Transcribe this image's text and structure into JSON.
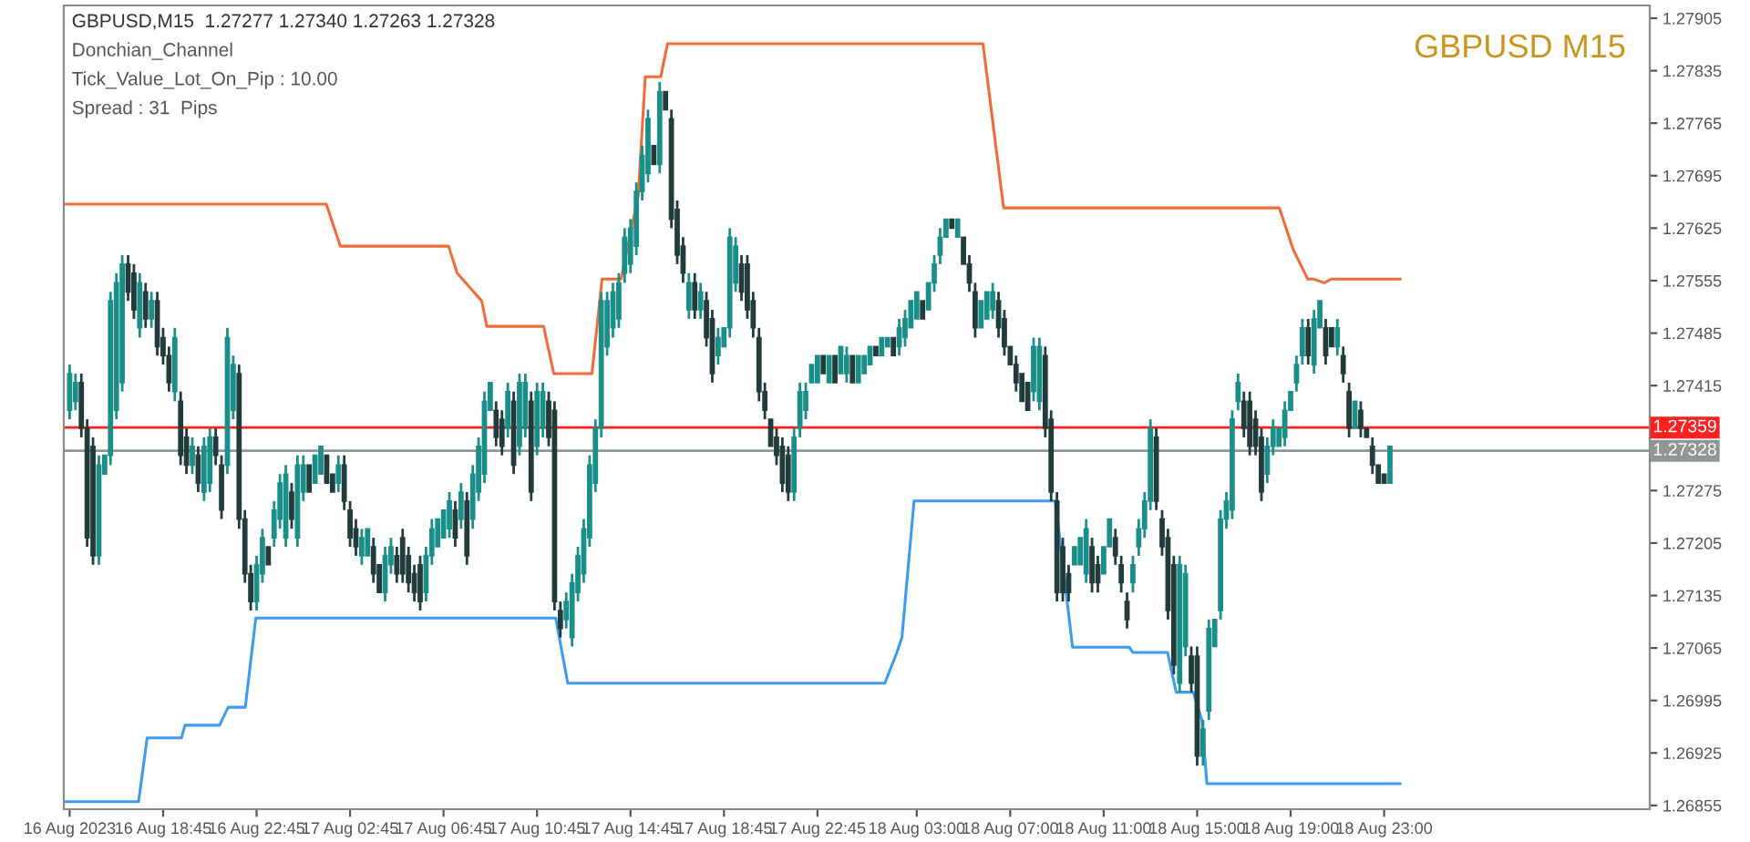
{
  "chart_data": {
    "type": "candlestick",
    "title": "GBPUSD M15",
    "annotations": [
      "GBPUSD,M15  1.27277 1.27340 1.27263 1.27328",
      "Donchian_Channel",
      "Tick_Value_Lot_On_Pip : 10.00",
      "Spread : 31  Pips"
    ],
    "colors": [
      "#1a8f8a",
      "#1a8f8a",
      "#223b3b",
      "#223b3b",
      "#223b3b",
      "#1a8f8a",
      "#1a8f8a",
      "#1a8f8a",
      "#1a8f8a",
      "#1a8f8a",
      "#223b3b",
      "#223b3b",
      "#1a8f8a",
      "#223b3b",
      "#1a8f8a",
      "#223b3b",
      "#223b3b",
      "#223b3b",
      "#1a8f8a",
      "#223b3b",
      "#223b3b",
      "#1a8f8a",
      "#223b3b",
      "#1a8f8a",
      "#1a8f8a",
      "#223b3b",
      "#223b3b",
      "#1a8f8a",
      "#1a8f8a",
      "#223b3b",
      "#223b3b",
      "#223b3b",
      "#1a8f8a",
      "#1a8f8a",
      "#223b3b",
      "#1a8f8a",
      "#1a8f8a",
      "#1a8f8a",
      "#223b3b",
      "#1a8f8a",
      "#1a8f8a",
      "#223b3b",
      "#1a8f8a",
      "#1a8f8a",
      "#223b3b",
      "#223b3b",
      "#1a8f8a",
      "#223b3b",
      "#223b3b",
      "#223b3b",
      "#1a8f8a",
      "#1a8f8a",
      "#223b3b",
      "#223b3b",
      "#1a8f8a",
      "#1a8f8a",
      "#223b3b",
      "#223b3b",
      "#223b3b",
      "#223b3b",
      "#223b3b",
      "#1a8f8a",
      "#1a8f8a",
      "#1a8f8a",
      "#1a8f8a",
      "#1a8f8a",
      "#223b3b",
      "#1a8f8a",
      "#223b3b",
      "#1a8f8a",
      "#1a8f8a",
      "#1a8f8a",
      "#1a8f8a",
      "#223b3b",
      "#223b3b",
      "#1a8f8a",
      "#223b3b",
      "#1a8f8a",
      "#1a8f8a",
      "#223b3b",
      "#1a8f8a",
      "#1a8f8a",
      "#223b3b",
      "#223b3b",
      "#223b3b",
      "#1a8f8a",
      "#1a8f8a",
      "#1a8f8a",
      "#1a8f8a",
      "#1a8f8a",
      "#1a8f8a",
      "#1a8f8a",
      "#1a8f8a",
      "#1a8f8a",
      "#1a8f8a",
      "#1a8f8a",
      "#1a8f8a",
      "#1a8f8a",
      "#1a8f8a",
      "#1a8f8a",
      "#223b3b",
      "#1a8f8a",
      "#223b3b",
      "#223b3b",
      "#223b3b",
      "#223b3b",
      "#1a8f8a",
      "#223b3b",
      "#1a8f8a",
      "#223b3b",
      "#223b3b",
      "#1a8f8a",
      "#1a8f8a",
      "#1a8f8a",
      "#1a8f8a",
      "#223b3b",
      "#223b3b",
      "#223b3b",
      "#223b3b",
      "#223b3b",
      "#223b3b",
      "#223b3b",
      "#223b3b",
      "#223b3b",
      "#1a8f8a",
      "#1a8f8a",
      "#1a8f8a",
      "#1a8f8a",
      "#1a8f8a",
      "#223b3b",
      "#1a8f8a",
      "#223b3b",
      "#1a8f8a",
      "#1a8f8a",
      "#223b3b",
      "#1a8f8a",
      "#1a8f8a",
      "#1a8f8a",
      "#223b3b",
      "#1a8f8a",
      "#1a8f8a",
      "#223b3b",
      "#1a8f8a",
      "#1a8f8a",
      "#1a8f8a",
      "#1a8f8a",
      "#223b3b",
      "#1a8f8a",
      "#1a8f8a",
      "#1a8f8a",
      "#1a8f8a",
      "#223b3b",
      "#1a8f8a",
      "#223b3b",
      "#223b3b",
      "#223b3b",
      "#1a8f8a",
      "#1a8f8a",
      "#1a8f8a",
      "#223b3b",
      "#223b3b",
      "#223b3b",
      "#223b3b",
      "#223b3b",
      "#223b3b",
      "#1a8f8a",
      "#1a8f8a",
      "#223b3b",
      "#223b3b",
      "#223b3b",
      "#223b3b",
      "#223b3b",
      "#1a8f8a",
      "#1a8f8a",
      "#1a8f8a",
      "#223b3b",
      "#223b3b",
      "#1a8f8a",
      "#1a8f8a",
      "#223b3b",
      "#223b3b",
      "#223b3b",
      "#1a8f8a",
      "#1a8f8a",
      "#1a8f8a",
      "#1a8f8a",
      "#223b3b",
      "#223b3b",
      "#223b3b",
      "#223b3b",
      "#1a8f8a",
      "#1a8f8a",
      "#223b3b",
      "#223b3b",
      "#1a8f8a",
      "#1a8f8a",
      "#1a8f8a",
      "#1a8f8a",
      "#1a8f8a",
      "#1a8f8a",
      "#1a8f8a",
      "#223b3b",
      "#223b3b",
      "#223b3b",
      "#223b3b",
      "#1a8f8a",
      "#1a8f8a",
      "#1a8f8a",
      "#1a8f8a",
      "#1a8f8a",
      "#1a8f8a",
      "#1a8f8a",
      "#223b3b",
      "#1a8f8a",
      "#1a8f8a",
      "#223b3b",
      "#223b3b",
      "#1a8f8a",
      "#223b3b",
      "#223b3b",
      "#1a8f8a",
      "#223b3b",
      "#223b3b",
      "#223b3b",
      "#223b3b",
      "#223b3b",
      "#1a8f8a"
    ],
    "xlim": [
      "2023-08-16T14:30",
      "2023-08-19T10:22"
    ],
    "ylim": [
      1.2685,
      1.27922
    ],
    "xticks": [
      {
        "value": "2023-08-16T14:45",
        "label": "16 Aug 2023"
      },
      {
        "value": "2023-08-16T18:45",
        "label": "16 Aug 18:45"
      },
      {
        "value": "2023-08-16T22:45",
        "label": "16 Aug 22:45"
      },
      {
        "value": "2023-08-17T02:45",
        "label": "17 Aug 02:45"
      },
      {
        "value": "2023-08-17T06:45",
        "label": "17 Aug 06:45"
      },
      {
        "value": "2023-08-17T10:45",
        "label": "17 Aug 10:45"
      },
      {
        "value": "2023-08-17T14:45",
        "label": "17 Aug 14:45"
      },
      {
        "value": "2023-08-17T18:45",
        "label": "17 Aug 18:45"
      },
      {
        "value": "2023-08-17T22:45",
        "label": "17 Aug 22:45"
      },
      {
        "value": "2023-08-18T03:00",
        "label": "18 Aug 03:00"
      },
      {
        "value": "2023-08-18T07:00",
        "label": "18 Aug 07:00"
      },
      {
        "value": "2023-08-18T11:00",
        "label": "18 Aug 11:00"
      },
      {
        "value": "2023-08-18T15:00",
        "label": "18 Aug 15:00"
      },
      {
        "value": "2023-08-18T19:00",
        "label": "18 Aug 19:00"
      },
      {
        "value": "2023-08-18T23:00",
        "label": "18 Aug 23:00"
      }
    ],
    "yticks": [
      1.27905,
      1.27835,
      1.27765,
      1.27695,
      1.27625,
      1.27555,
      1.27485,
      1.27415,
      1.27275,
      1.27205,
      1.27135,
      1.27065,
      1.26995,
      1.26925,
      1.26855
    ],
    "ref_lines": [
      {
        "axis": "y",
        "value": 1.27359,
        "label": "1.27359",
        "color": "#ff2020"
      },
      {
        "axis": "y",
        "value": 1.27328,
        "label": "1.27328",
        "color": "#8f9696"
      }
    ],
    "x": [
      "2023-08-16T14:45",
      "2023-08-16T15:00",
      "2023-08-16T15:15",
      "2023-08-16T15:30",
      "2023-08-16T15:45",
      "2023-08-16T16:00",
      "2023-08-16T16:15",
      "2023-08-16T16:30",
      "2023-08-16T16:45",
      "2023-08-16T17:00",
      "2023-08-16T17:15",
      "2023-08-16T17:30",
      "2023-08-16T17:45",
      "2023-08-16T18:00",
      "2023-08-16T18:15",
      "2023-08-16T18:30",
      "2023-08-16T18:45",
      "2023-08-16T19:00",
      "2023-08-16T19:15",
      "2023-08-16T19:30",
      "2023-08-16T19:45",
      "2023-08-16T20:00",
      "2023-08-16T20:15",
      "2023-08-16T20:30",
      "2023-08-16T20:45",
      "2023-08-16T21:00",
      "2023-08-16T21:15",
      "2023-08-16T21:30",
      "2023-08-16T21:45",
      "2023-08-16T22:00",
      "2023-08-16T22:15",
      "2023-08-16T22:30",
      "2023-08-16T22:45",
      "2023-08-16T23:00",
      "2023-08-16T23:15",
      "2023-08-16T23:30",
      "2023-08-16T23:45",
      "2023-08-17T00:00",
      "2023-08-17T00:15",
      "2023-08-17T00:30",
      "2023-08-17T00:45",
      "2023-08-17T01:00",
      "2023-08-17T01:15",
      "2023-08-17T01:30",
      "2023-08-17T01:45",
      "2023-08-17T02:00",
      "2023-08-17T02:15",
      "2023-08-17T02:30",
      "2023-08-17T02:45",
      "2023-08-17T03:00",
      "2023-08-17T03:15",
      "2023-08-17T03:30",
      "2023-08-17T03:45",
      "2023-08-17T04:00",
      "2023-08-17T04:15",
      "2023-08-17T04:30",
      "2023-08-17T04:45",
      "2023-08-17T05:00",
      "2023-08-17T05:15",
      "2023-08-17T05:30",
      "2023-08-17T05:45",
      "2023-08-17T06:00",
      "2023-08-17T06:15",
      "2023-08-17T06:30",
      "2023-08-17T06:45",
      "2023-08-17T07:00",
      "2023-08-17T07:15",
      "2023-08-17T07:30",
      "2023-08-17T07:45",
      "2023-08-17T08:00",
      "2023-08-17T08:15",
      "2023-08-17T08:30",
      "2023-08-17T08:45",
      "2023-08-17T09:00",
      "2023-08-17T09:15",
      "2023-08-17T09:30",
      "2023-08-17T09:45",
      "2023-08-17T10:00",
      "2023-08-17T10:15",
      "2023-08-17T10:30",
      "2023-08-17T10:45",
      "2023-08-17T11:00",
      "2023-08-17T11:15",
      "2023-08-17T11:30",
      "2023-08-17T11:45",
      "2023-08-17T12:00",
      "2023-08-17T12:15",
      "2023-08-17T12:30",
      "2023-08-17T12:45",
      "2023-08-17T13:00",
      "2023-08-17T13:15",
      "2023-08-17T13:30",
      "2023-08-17T13:45",
      "2023-08-17T14:00",
      "2023-08-17T14:15",
      "2023-08-17T14:30",
      "2023-08-17T14:45",
      "2023-08-17T15:00",
      "2023-08-17T15:15",
      "2023-08-17T15:30",
      "2023-08-17T15:45",
      "2023-08-17T16:00",
      "2023-08-17T16:15",
      "2023-08-17T16:30",
      "2023-08-17T16:45",
      "2023-08-17T17:00",
      "2023-08-17T17:15",
      "2023-08-17T17:30",
      "2023-08-17T17:45",
      "2023-08-17T18:00",
      "2023-08-17T18:15",
      "2023-08-17T18:30",
      "2023-08-17T18:45",
      "2023-08-17T19:00",
      "2023-08-17T19:15",
      "2023-08-17T19:30",
      "2023-08-17T19:45",
      "2023-08-17T20:00",
      "2023-08-17T20:15",
      "2023-08-17T20:30",
      "2023-08-17T20:45",
      "2023-08-17T21:00",
      "2023-08-17T21:15",
      "2023-08-17T21:30",
      "2023-08-17T21:45",
      "2023-08-17T22:00",
      "2023-08-17T22:15",
      "2023-08-17T22:30",
      "2023-08-17T22:45",
      "2023-08-17T23:00",
      "2023-08-17T23:15",
      "2023-08-17T23:30",
      "2023-08-17T23:45",
      "2023-08-18T00:00",
      "2023-08-18T00:15",
      "2023-08-18T00:30",
      "2023-08-18T00:45",
      "2023-08-18T01:00",
      "2023-08-18T01:15",
      "2023-08-18T01:30",
      "2023-08-18T01:45",
      "2023-08-18T02:00",
      "2023-08-18T02:15",
      "2023-08-18T02:30",
      "2023-08-18T02:45",
      "2023-08-18T03:00",
      "2023-08-18T03:15",
      "2023-08-18T03:30",
      "2023-08-18T03:45",
      "2023-08-18T04:00",
      "2023-08-18T04:15",
      "2023-08-18T04:30",
      "2023-08-18T04:45",
      "2023-08-18T05:00",
      "2023-08-18T05:15",
      "2023-08-18T05:30",
      "2023-08-18T05:45",
      "2023-08-18T06:00",
      "2023-08-18T06:15",
      "2023-08-18T06:30",
      "2023-08-18T06:45",
      "2023-08-18T07:00",
      "2023-08-18T07:15",
      "2023-08-18T07:30",
      "2023-08-18T07:45",
      "2023-08-18T08:00",
      "2023-08-18T08:15",
      "2023-08-18T08:30",
      "2023-08-18T08:45",
      "2023-08-18T09:00",
      "2023-08-18T09:15",
      "2023-08-18T09:30",
      "2023-08-18T09:45",
      "2023-08-18T10:00",
      "2023-08-18T10:15",
      "2023-08-18T10:30",
      "2023-08-18T10:45",
      "2023-08-18T11:00",
      "2023-08-18T11:15",
      "2023-08-18T11:30",
      "2023-08-18T11:45",
      "2023-08-18T12:00",
      "2023-08-18T12:15",
      "2023-08-18T12:30",
      "2023-08-18T12:45",
      "2023-08-18T13:00",
      "2023-08-18T13:15",
      "2023-08-18T13:30",
      "2023-08-18T13:45",
      "2023-08-18T14:00",
      "2023-08-18T14:15",
      "2023-08-18T14:30",
      "2023-08-18T14:45",
      "2023-08-18T15:00",
      "2023-08-18T15:15",
      "2023-08-18T15:30",
      "2023-08-18T15:45",
      "2023-08-18T16:00",
      "2023-08-18T16:15",
      "2023-08-18T16:30",
      "2023-08-18T16:45",
      "2023-08-18T17:00",
      "2023-08-18T17:15",
      "2023-08-18T17:30",
      "2023-08-18T17:45",
      "2023-08-18T18:00",
      "2023-08-18T18:15",
      "2023-08-18T18:30",
      "2023-08-18T18:45",
      "2023-08-18T19:00",
      "2023-08-18T19:15",
      "2023-08-18T19:30",
      "2023-08-18T19:45",
      "2023-08-18T20:00",
      "2023-08-18T20:15",
      "2023-08-18T20:30",
      "2023-08-18T20:45",
      "2023-08-18T21:00",
      "2023-08-18T21:15",
      "2023-08-18T21:30",
      "2023-08-18T21:45",
      "2023-08-18T22:00",
      "2023-08-18T22:15",
      "2023-08-18T22:30",
      "2023-08-18T22:45",
      "2023-08-18T23:00",
      "2023-08-18T23:15"
    ],
    "ohlc": [
      [
        1.27382,
        1.27443,
        1.2737,
        1.27431
      ],
      [
        1.27394,
        1.27431,
        1.27382,
        1.27419
      ],
      [
        1.27419,
        1.27431,
        1.27346,
        1.27358
      ],
      [
        1.27358,
        1.2737,
        1.272,
        1.27212
      ],
      [
        1.27334,
        1.27346,
        1.27176,
        1.27188
      ],
      [
        1.27188,
        1.27322,
        1.27176,
        1.27309
      ],
      [
        1.27297,
        1.27322,
        1.27297,
        1.27322
      ],
      [
        1.27322,
        1.2754,
        1.27309,
        1.27528
      ],
      [
        1.27382,
        1.27565,
        1.2737,
        1.27552
      ],
      [
        1.27419,
        1.27589,
        1.27407,
        1.27577
      ],
      [
        1.27577,
        1.27589,
        1.27528,
        1.2754
      ],
      [
        1.27565,
        1.27577,
        1.27504,
        1.27516
      ],
      [
        1.27492,
        1.27565,
        1.27479,
        1.27552
      ],
      [
        1.2754,
        1.27552,
        1.27492,
        1.27504
      ],
      [
        1.27504,
        1.2754,
        1.27492,
        1.27528
      ],
      [
        1.27528,
        1.2754,
        1.27455,
        1.27467
      ],
      [
        1.27479,
        1.27492,
        1.27443,
        1.27455
      ],
      [
        1.27455,
        1.27467,
        1.27407,
        1.27419
      ],
      [
        1.27407,
        1.27492,
        1.27394,
        1.27479
      ],
      [
        1.27394,
        1.27407,
        1.27309,
        1.27322
      ],
      [
        1.27346,
        1.27358,
        1.27297,
        1.27309
      ],
      [
        1.27309,
        1.27346,
        1.27297,
        1.27334
      ],
      [
        1.27322,
        1.27334,
        1.27273,
        1.27285
      ],
      [
        1.27273,
        1.27346,
        1.27261,
        1.27334
      ],
      [
        1.27285,
        1.27358,
        1.27273,
        1.27346
      ],
      [
        1.27346,
        1.27358,
        1.27309,
        1.27322
      ],
      [
        1.27309,
        1.27322,
        1.27237,
        1.27249
      ],
      [
        1.27309,
        1.27492,
        1.27297,
        1.27479
      ],
      [
        1.27382,
        1.27455,
        1.2737,
        1.27443
      ],
      [
        1.27431,
        1.27443,
        1.27224,
        1.27237
      ],
      [
        1.27237,
        1.27249,
        1.27152,
        1.27164
      ],
      [
        1.27164,
        1.27176,
        1.27115,
        1.27127
      ],
      [
        1.27127,
        1.27188,
        1.27115,
        1.27176
      ],
      [
        1.27164,
        1.27224,
        1.27152,
        1.27212
      ],
      [
        1.272,
        1.272,
        1.27176,
        1.27176
      ],
      [
        1.27212,
        1.27261,
        1.272,
        1.27249
      ],
      [
        1.27237,
        1.27297,
        1.27224,
        1.27285
      ],
      [
        1.27212,
        1.27309,
        1.272,
        1.27297
      ],
      [
        1.27273,
        1.27285,
        1.27224,
        1.27237
      ],
      [
        1.27212,
        1.27322,
        1.272,
        1.27309
      ],
      [
        1.27273,
        1.27322,
        1.27261,
        1.27309
      ],
      [
        1.27309,
        1.27309,
        1.27273,
        1.27273
      ],
      [
        1.27285,
        1.27322,
        1.27285,
        1.27322
      ],
      [
        1.27297,
        1.27334,
        1.27297,
        1.27334
      ],
      [
        1.27322,
        1.27322,
        1.27285,
        1.27285
      ],
      [
        1.27297,
        1.27297,
        1.27273,
        1.27273
      ],
      [
        1.27285,
        1.27322,
        1.27273,
        1.27309
      ],
      [
        1.27309,
        1.27322,
        1.27249,
        1.27261
      ],
      [
        1.27249,
        1.27261,
        1.272,
        1.27212
      ],
      [
        1.27224,
        1.27237,
        1.27188,
        1.272
      ],
      [
        1.27188,
        1.27224,
        1.27176,
        1.27212
      ],
      [
        1.27188,
        1.27224,
        1.27188,
        1.27224
      ],
      [
        1.272,
        1.27212,
        1.27152,
        1.27164
      ],
      [
        1.27176,
        1.27176,
        1.27139,
        1.27139
      ],
      [
        1.27139,
        1.272,
        1.27127,
        1.27188
      ],
      [
        1.27176,
        1.27212,
        1.27164,
        1.272
      ],
      [
        1.27188,
        1.272,
        1.27152,
        1.27164
      ],
      [
        1.27212,
        1.27224,
        1.27152,
        1.27164
      ],
      [
        1.27188,
        1.272,
        1.27139,
        1.27152
      ],
      [
        1.27164,
        1.27176,
        1.27127,
        1.27139
      ],
      [
        1.27176,
        1.27188,
        1.27115,
        1.27127
      ],
      [
        1.27139,
        1.272,
        1.27127,
        1.27188
      ],
      [
        1.27188,
        1.27237,
        1.27176,
        1.27224
      ],
      [
        1.272,
        1.27237,
        1.272,
        1.27237
      ],
      [
        1.27212,
        1.27249,
        1.27212,
        1.27249
      ],
      [
        1.27224,
        1.27273,
        1.27212,
        1.27261
      ],
      [
        1.27249,
        1.27261,
        1.272,
        1.27212
      ],
      [
        1.27237,
        1.27285,
        1.27224,
        1.27273
      ],
      [
        1.27261,
        1.27273,
        1.27176,
        1.27188
      ],
      [
        1.27237,
        1.27309,
        1.27224,
        1.27297
      ],
      [
        1.27273,
        1.27346,
        1.27261,
        1.27334
      ],
      [
        1.27297,
        1.27407,
        1.27285,
        1.27394
      ],
      [
        1.27382,
        1.27419,
        1.27382,
        1.27419
      ],
      [
        1.27382,
        1.27394,
        1.27334,
        1.27346
      ],
      [
        1.2737,
        1.27382,
        1.27322,
        1.27334
      ],
      [
        1.27358,
        1.27419,
        1.27346,
        1.27407
      ],
      [
        1.27394,
        1.27407,
        1.27297,
        1.27309
      ],
      [
        1.27334,
        1.27431,
        1.27322,
        1.27419
      ],
      [
        1.27358,
        1.27431,
        1.27346,
        1.27419
      ],
      [
        1.27394,
        1.27407,
        1.27261,
        1.27273
      ],
      [
        1.27334,
        1.27419,
        1.27322,
        1.27407
      ],
      [
        1.27358,
        1.27419,
        1.27346,
        1.27407
      ],
      [
        1.27394,
        1.27407,
        1.27334,
        1.27346
      ],
      [
        1.27382,
        1.27394,
        1.27115,
        1.27127
      ],
      [
        1.27115,
        1.27127,
        1.27079,
        1.27091
      ],
      [
        1.27103,
        1.27139,
        1.27091,
        1.27127
      ],
      [
        1.27079,
        1.27164,
        1.27067,
        1.27152
      ],
      [
        1.27139,
        1.272,
        1.27127,
        1.27188
      ],
      [
        1.27164,
        1.27237,
        1.27152,
        1.27224
      ],
      [
        1.27212,
        1.27322,
        1.272,
        1.27309
      ],
      [
        1.27285,
        1.2737,
        1.27273,
        1.27358
      ],
      [
        1.27358,
        1.2754,
        1.27346,
        1.27528
      ],
      [
        1.27467,
        1.2754,
        1.27455,
        1.27528
      ],
      [
        1.27492,
        1.27552,
        1.27479,
        1.2754
      ],
      [
        1.27504,
        1.27565,
        1.27492,
        1.27552
      ],
      [
        1.27565,
        1.27625,
        1.27552,
        1.27613
      ],
      [
        1.27577,
        1.27637,
        1.27565,
        1.27625
      ],
      [
        1.27601,
        1.27686,
        1.27589,
        1.27674
      ],
      [
        1.27674,
        1.27735,
        1.27662,
        1.27722
      ],
      [
        1.27698,
        1.27783,
        1.27686,
        1.27771
      ],
      [
        1.27735,
        1.27735,
        1.2771,
        1.2771
      ],
      [
        1.2771,
        1.2782,
        1.27698,
        1.27807
      ],
      [
        1.27807,
        1.27807,
        1.27783,
        1.27783
      ],
      [
        1.27771,
        1.27783,
        1.27625,
        1.27637
      ],
      [
        1.2765,
        1.27662,
        1.27577,
        1.27589
      ],
      [
        1.27601,
        1.27613,
        1.27552,
        1.27565
      ],
      [
        1.27516,
        1.27565,
        1.27504,
        1.27552
      ],
      [
        1.27552,
        1.27565,
        1.27504,
        1.27516
      ],
      [
        1.27516,
        1.27552,
        1.27504,
        1.2754
      ],
      [
        1.27528,
        1.2754,
        1.27467,
        1.27479
      ],
      [
        1.27504,
        1.27516,
        1.27419,
        1.27431
      ],
      [
        1.27455,
        1.27492,
        1.27443,
        1.27479
      ],
      [
        1.27467,
        1.27492,
        1.27467,
        1.27492
      ],
      [
        1.27492,
        1.27625,
        1.27479,
        1.27613
      ],
      [
        1.27552,
        1.27613,
        1.2754,
        1.27601
      ],
      [
        1.27577,
        1.27589,
        1.27528,
        1.2754
      ],
      [
        1.27577,
        1.27589,
        1.27504,
        1.27516
      ],
      [
        1.27528,
        1.2754,
        1.27479,
        1.27492
      ],
      [
        1.27479,
        1.27492,
        1.27394,
        1.27407
      ],
      [
        1.27407,
        1.27419,
        1.2737,
        1.27382
      ],
      [
        1.2737,
        1.2737,
        1.27334,
        1.27334
      ],
      [
        1.27346,
        1.27358,
        1.27309,
        1.27322
      ],
      [
        1.27334,
        1.27346,
        1.27273,
        1.27285
      ],
      [
        1.27322,
        1.27334,
        1.27261,
        1.27273
      ],
      [
        1.27273,
        1.27358,
        1.27261,
        1.27346
      ],
      [
        1.27358,
        1.27419,
        1.27346,
        1.27407
      ],
      [
        1.27382,
        1.27419,
        1.2737,
        1.27407
      ],
      [
        1.27419,
        1.27443,
        1.27419,
        1.27443
      ],
      [
        1.27419,
        1.27455,
        1.27419,
        1.27455
      ],
      [
        1.27455,
        1.27455,
        1.27431,
        1.27431
      ],
      [
        1.27419,
        1.27455,
        1.27419,
        1.27455
      ],
      [
        1.27455,
        1.27455,
        1.27419,
        1.27419
      ],
      [
        1.27431,
        1.27467,
        1.27431,
        1.27467
      ],
      [
        1.27431,
        1.27467,
        1.27419,
        1.27455
      ],
      [
        1.27455,
        1.27455,
        1.27419,
        1.27419
      ],
      [
        1.27419,
        1.27455,
        1.27419,
        1.27455
      ],
      [
        1.27431,
        1.27455,
        1.27431,
        1.27455
      ],
      [
        1.27443,
        1.27467,
        1.27443,
        1.27467
      ],
      [
        1.27467,
        1.27467,
        1.27455,
        1.27455
      ],
      [
        1.27455,
        1.27479,
        1.27455,
        1.27479
      ],
      [
        1.27467,
        1.27479,
        1.27467,
        1.27479
      ],
      [
        1.27479,
        1.27479,
        1.27455,
        1.27455
      ],
      [
        1.27467,
        1.27504,
        1.27455,
        1.27492
      ],
      [
        1.27479,
        1.27516,
        1.27467,
        1.27504
      ],
      [
        1.27492,
        1.27528,
        1.27492,
        1.27528
      ],
      [
        1.27504,
        1.2754,
        1.27504,
        1.2754
      ],
      [
        1.27528,
        1.27528,
        1.27504,
        1.27504
      ],
      [
        1.27516,
        1.27552,
        1.27516,
        1.27552
      ],
      [
        1.27552,
        1.27589,
        1.2754,
        1.27577
      ],
      [
        1.27589,
        1.27625,
        1.27577,
        1.27613
      ],
      [
        1.27613,
        1.27637,
        1.27613,
        1.27637
      ],
      [
        1.27637,
        1.27637,
        1.27625,
        1.27625
      ],
      [
        1.27613,
        1.27637,
        1.27613,
        1.27637
      ],
      [
        1.27613,
        1.27613,
        1.27577,
        1.27577
      ],
      [
        1.27577,
        1.27589,
        1.2754,
        1.27552
      ],
      [
        1.2754,
        1.27552,
        1.27479,
        1.27492
      ],
      [
        1.27492,
        1.27528,
        1.27492,
        1.27528
      ],
      [
        1.27504,
        1.2754,
        1.27504,
        1.2754
      ],
      [
        1.27516,
        1.27552,
        1.27504,
        1.2754
      ],
      [
        1.27528,
        1.2754,
        1.27479,
        1.27492
      ],
      [
        1.27504,
        1.27516,
        1.27455,
        1.27467
      ],
      [
        1.27467,
        1.27467,
        1.27443,
        1.27443
      ],
      [
        1.27443,
        1.27455,
        1.27407,
        1.27419
      ],
      [
        1.27431,
        1.27431,
        1.27394,
        1.27394
      ],
      [
        1.27419,
        1.27419,
        1.27382,
        1.27382
      ],
      [
        1.27407,
        1.27479,
        1.27394,
        1.27467
      ],
      [
        1.27394,
        1.27479,
        1.27382,
        1.27467
      ],
      [
        1.27455,
        1.27467,
        1.27346,
        1.27358
      ],
      [
        1.2737,
        1.27382,
        1.27261,
        1.27273
      ],
      [
        1.27261,
        1.27273,
        1.27127,
        1.27139
      ],
      [
        1.272,
        1.27212,
        1.27127,
        1.27139
      ],
      [
        1.27164,
        1.27176,
        1.27127,
        1.27139
      ],
      [
        1.27176,
        1.272,
        1.27176,
        1.272
      ],
      [
        1.27176,
        1.27212,
        1.27176,
        1.27212
      ],
      [
        1.27164,
        1.27237,
        1.27152,
        1.27224
      ],
      [
        1.272,
        1.27212,
        1.27139,
        1.27152
      ],
      [
        1.27176,
        1.27188,
        1.27139,
        1.27152
      ],
      [
        1.27164,
        1.272,
        1.27164,
        1.272
      ],
      [
        1.272,
        1.27237,
        1.272,
        1.27237
      ],
      [
        1.27212,
        1.27224,
        1.27176,
        1.27188
      ],
      [
        1.27176,
        1.27188,
        1.27139,
        1.27152
      ],
      [
        1.27127,
        1.27139,
        1.27091,
        1.27103
      ],
      [
        1.27152,
        1.27188,
        1.27139,
        1.27176
      ],
      [
        1.272,
        1.27237,
        1.27188,
        1.27224
      ],
      [
        1.27224,
        1.27273,
        1.27212,
        1.27261
      ],
      [
        1.27261,
        1.2737,
        1.27249,
        1.27358
      ],
      [
        1.27346,
        1.27358,
        1.27249,
        1.27261
      ],
      [
        1.27237,
        1.27249,
        1.27188,
        1.272
      ],
      [
        1.27212,
        1.27224,
        1.27103,
        1.27115
      ],
      [
        1.27176,
        1.27188,
        1.2703,
        1.27042
      ],
      [
        1.27018,
        1.27188,
        1.27006,
        1.27176
      ],
      [
        1.27067,
        1.27176,
        1.27054,
        1.27164
      ],
      [
        1.27054,
        1.27067,
        1.27006,
        1.27018
      ],
      [
        1.27054,
        1.27067,
        1.26908,
        1.26921
      ],
      [
        1.26921,
        1.26969,
        1.26908,
        1.26957
      ],
      [
        1.26981,
        1.27103,
        1.26969,
        1.27091
      ],
      [
        1.27067,
        1.27103,
        1.27067,
        1.27103
      ],
      [
        1.27115,
        1.27249,
        1.27103,
        1.27237
      ],
      [
        1.27237,
        1.27273,
        1.27224,
        1.27261
      ],
      [
        1.27249,
        1.27382,
        1.27237,
        1.2737
      ],
      [
        1.27394,
        1.27431,
        1.27382,
        1.27419
      ],
      [
        1.27394,
        1.27407,
        1.27346,
        1.27358
      ],
      [
        1.27394,
        1.27407,
        1.27322,
        1.27334
      ],
      [
        1.2737,
        1.27382,
        1.27322,
        1.27334
      ],
      [
        1.27346,
        1.27358,
        1.27261,
        1.27273
      ],
      [
        1.27297,
        1.27346,
        1.27285,
        1.27334
      ],
      [
        1.27334,
        1.2737,
        1.27322,
        1.27358
      ],
      [
        1.27334,
        1.27358,
        1.27334,
        1.27358
      ],
      [
        1.27346,
        1.27394,
        1.27334,
        1.27382
      ],
      [
        1.27382,
        1.27407,
        1.27382,
        1.27407
      ],
      [
        1.27419,
        1.27455,
        1.27407,
        1.27443
      ],
      [
        1.27455,
        1.27504,
        1.27443,
        1.27492
      ],
      [
        1.27492,
        1.27504,
        1.27443,
        1.27455
      ],
      [
        1.27443,
        1.27516,
        1.27431,
        1.27504
      ],
      [
        1.27492,
        1.27528,
        1.27492,
        1.27528
      ],
      [
        1.27492,
        1.27504,
        1.27443,
        1.27455
      ],
      [
        1.27492,
        1.27492,
        1.27467,
        1.27467
      ],
      [
        1.27467,
        1.27504,
        1.27455,
        1.27492
      ],
      [
        1.27455,
        1.27467,
        1.27419,
        1.27431
      ],
      [
        1.27407,
        1.27419,
        1.27346,
        1.27358
      ],
      [
        1.27358,
        1.27394,
        1.27358,
        1.27394
      ],
      [
        1.27382,
        1.27394,
        1.27346,
        1.27358
      ],
      [
        1.27358,
        1.27358,
        1.27346,
        1.27346
      ],
      [
        1.27334,
        1.27346,
        1.27297,
        1.27309
      ],
      [
        1.27309,
        1.27309,
        1.27285,
        1.27285
      ],
      [
        1.27297,
        1.27297,
        1.27285,
        1.27285
      ],
      [
        1.27285,
        1.27334,
        1.27285,
        1.27334
      ]
    ],
    "series": [
      {
        "type": "line",
        "color": "#f26b3a",
        "x": [
          "2023-08-16T14:30",
          "2023-08-17T01:44",
          "2023-08-17T02:20",
          "2023-08-17T06:58",
          "2023-08-17T07:20",
          "2023-08-17T08:23",
          "2023-08-17T08:36",
          "2023-08-17T11:02",
          "2023-08-17T11:28",
          "2023-08-17T13:06",
          "2023-08-17T13:32",
          "2023-08-17T14:21",
          "2023-08-17T15:05",
          "2023-08-17T15:23",
          "2023-08-17T16:03",
          "2023-08-17T16:20",
          "2023-08-18T05:50",
          "2023-08-18T06:43",
          "2023-08-18T18:31",
          "2023-08-18T19:07",
          "2023-08-18T19:44",
          "2023-08-18T20:00",
          "2023-08-18T20:26",
          "2023-08-18T20:44",
          "2023-08-18T23:41"
        ],
        "values": [
          1.27657,
          1.27657,
          1.27601,
          1.27601,
          1.27565,
          1.27528,
          1.27494,
          1.27494,
          1.27431,
          1.27431,
          1.27557,
          1.27557,
          1.27669,
          1.27827,
          1.27827,
          1.27871,
          1.27871,
          1.27652,
          1.27652,
          1.27596,
          1.27557,
          1.27557,
          1.27552,
          1.27557,
          1.27557
        ]
      },
      {
        "type": "line",
        "color": "#3d9bf0",
        "x": [
          "2023-08-16T14:30",
          "2023-08-16T17:42",
          "2023-08-16T18:04",
          "2023-08-16T19:32",
          "2023-08-16T19:41",
          "2023-08-16T21:10",
          "2023-08-16T21:32",
          "2023-08-16T22:16",
          "2023-08-16T22:43",
          "2023-08-17T11:33",
          "2023-08-17T12:04",
          "2023-08-18T01:38",
          "2023-08-18T02:09",
          "2023-08-18T02:22",
          "2023-08-18T02:53",
          "2023-08-18T08:56",
          "2023-08-18T09:40",
          "2023-08-18T12:06",
          "2023-08-18T12:15",
          "2023-08-18T13:44",
          "2023-08-18T14:06",
          "2023-08-18T14:50",
          "2023-08-18T15:12",
          "2023-08-18T15:25",
          "2023-08-18T23:41"
        ],
        "values": [
          1.2686,
          1.2686,
          1.26945,
          1.26945,
          1.26962,
          1.26962,
          1.26986,
          1.26986,
          1.27105,
          1.27105,
          1.27018,
          1.27018,
          1.27059,
          1.27079,
          1.27261,
          1.27261,
          1.27066,
          1.27066,
          1.27059,
          1.27059,
          1.27006,
          1.27006,
          1.26969,
          1.26884,
          1.26884
        ]
      }
    ]
  }
}
